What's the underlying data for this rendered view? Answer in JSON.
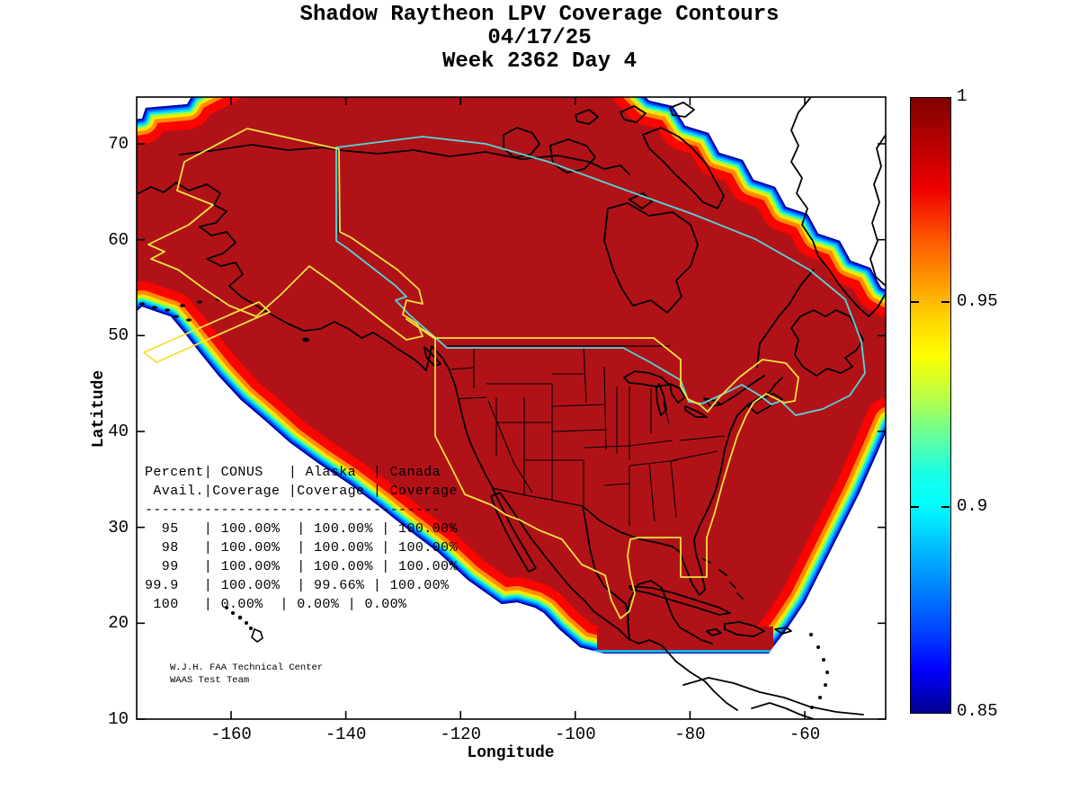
{
  "title": {
    "line1": "Shadow Raytheon LPV Coverage Contours",
    "line2": "04/17/25",
    "line3": "Week 2362 Day 4"
  },
  "axes": {
    "x": {
      "label": "Longitude",
      "ticks": [
        {
          "value": -160,
          "label": "-160"
        },
        {
          "value": -140,
          "label": "-140"
        },
        {
          "value": -120,
          "label": "-120"
        },
        {
          "value": -100,
          "label": "-100"
        },
        {
          "value": -80,
          "label": "-80"
        },
        {
          "value": -60,
          "label": "-60"
        }
      ]
    },
    "y": {
      "label": "Latitude",
      "ticks": [
        {
          "value": 10,
          "label": "10"
        },
        {
          "value": 20,
          "label": "20"
        },
        {
          "value": 30,
          "label": "30"
        },
        {
          "value": 40,
          "label": "40"
        },
        {
          "value": 50,
          "label": "50"
        },
        {
          "value": 60,
          "label": "60"
        },
        {
          "value": 70,
          "label": "70"
        }
      ]
    }
  },
  "colorbar": {
    "min": 0.85,
    "max": 1,
    "ticks": [
      {
        "value": 1,
        "label": "1"
      },
      {
        "value": 0.95,
        "label": "0.95"
      },
      {
        "value": 0.9,
        "label": "0.9"
      },
      {
        "value": 0.85,
        "label": "0.85"
      }
    ]
  },
  "coverage_table": {
    "display_lines": [
      "Percent| CONUS   | Alaska  | Canada",
      " Avail.|Coverage |Coverage | Coverage",
      "-----------------------------------",
      "  95   | 100.00%  | 100.00% | 100.00%",
      "  98   | 100.00%  | 100.00% | 100.00%",
      "  99   | 100.00%  | 100.00% | 100.00%",
      "99.9   | 100.00%  | 99.66% | 100.00%",
      " 100   | 0.00%  | 0.00% | 0.00%"
    ]
  },
  "credit": {
    "line1": "W.J.H. FAA Technical Center",
    "line2": "WAAS Test Team"
  },
  "colors": {
    "coverage_fill": "#b11218",
    "fringe": [
      "#fa0500",
      "#ff8c00",
      "#ffe600",
      "#8cff50",
      "#00e6ff",
      "#00a0ff",
      "#0040ff",
      "#0000a0"
    ],
    "conus_alaska_boundary_yellow": "#f2e23c",
    "canada_boundary_cyan": "#53d6dc",
    "coastline": "#000000",
    "background": "#ffffff"
  },
  "chart_data": {
    "type": "heatmap",
    "title": "Shadow Raytheon LPV Coverage Contours",
    "subtitle": [
      "04/17/25",
      "Week 2362 Day 4"
    ],
    "xlabel": "Longitude",
    "ylabel": "Latitude",
    "xlim": [
      -176.5,
      -46
    ],
    "ylim": [
      10,
      75
    ],
    "xticks": [
      -160,
      -140,
      -120,
      -100,
      -80,
      -60
    ],
    "yticks": [
      10,
      20,
      30,
      40,
      50,
      60,
      70
    ],
    "colorbar": {
      "range": [
        0.85,
        1
      ],
      "ticks": [
        1,
        0.95,
        0.9,
        0.85
      ],
      "colormap": "jet"
    },
    "description": "LPV availability contour map over North America; interior dark red at availability 1.0 with jet-colormap fringe contours down to 0.85 along oceanic coverage boundaries; yellow outlines mark CONUS and Alaska service areas, cyan outline marks Canada service area.",
    "table": {
      "columns": [
        "Percent Avail.",
        "CONUS Coverage",
        "Alaska Coverage",
        "Canada Coverage"
      ],
      "rows": [
        [
          "95",
          "100.00%",
          "100.00%",
          "100.00%"
        ],
        [
          "98",
          "100.00%",
          "100.00%",
          "100.00%"
        ],
        [
          "99",
          "100.00%",
          "100.00%",
          "100.00%"
        ],
        [
          "99.9",
          "100.00%",
          "99.66%",
          "100.00%"
        ],
        [
          "100",
          "0.00%",
          "0.00%",
          "0.00%"
        ]
      ]
    }
  }
}
